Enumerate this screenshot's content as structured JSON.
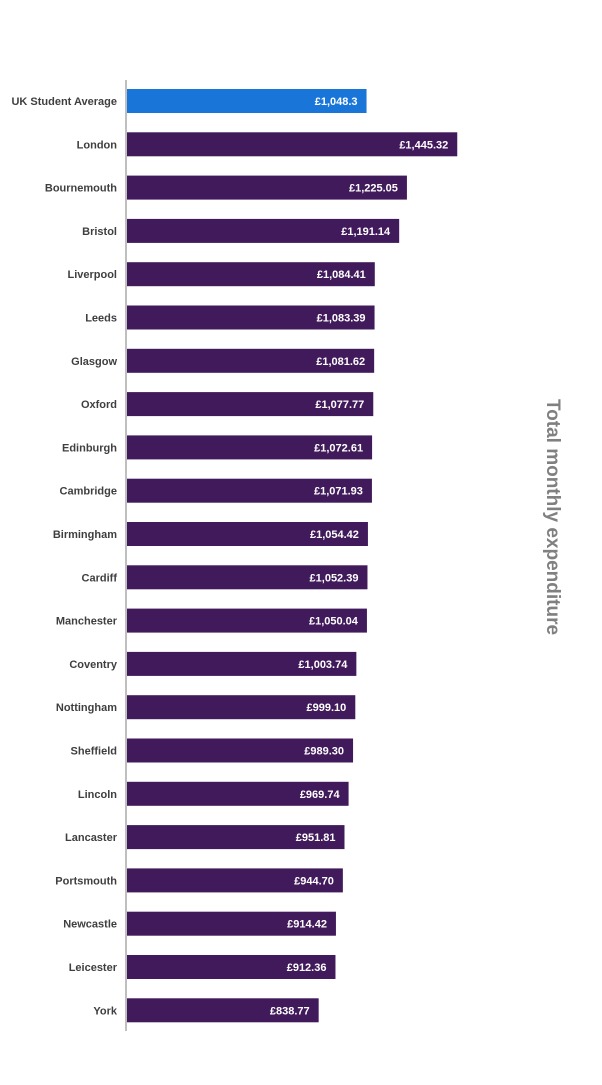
{
  "chart_data": {
    "type": "bar",
    "orientation": "horizontal",
    "title": "Total monthly expenditure",
    "xlabel": "",
    "ylabel": "",
    "xlim": [
      0,
      1500
    ],
    "grid": false,
    "categories": [
      "UK Student Average",
      "London",
      "Bournemouth",
      "Bristol",
      "Liverpool",
      "Leeds",
      "Glasgow",
      "Oxford",
      "Edinburgh",
      "Cambridge",
      "Birmingham",
      "Cardiff",
      "Manchester",
      "Coventry",
      "Nottingham",
      "Sheffield",
      "Lincoln",
      "Lancaster",
      "Portsmouth",
      "Newcastle",
      "Leicester",
      "York"
    ],
    "values": [
      1048.3,
      1445.32,
      1225.05,
      1191.14,
      1084.41,
      1083.39,
      1081.62,
      1077.77,
      1072.61,
      1071.93,
      1054.42,
      1052.39,
      1050.04,
      1003.74,
      999.1,
      989.3,
      969.74,
      951.81,
      944.7,
      914.42,
      912.36,
      838.77
    ],
    "value_labels": [
      "£1,048.3",
      "£1,445.32",
      "£1,225.05",
      "£1,191.14",
      "£1,084.41",
      "£1,083.39",
      "£1,081.62",
      "£1,077.77",
      "£1,072.61",
      "£1,071.93",
      "£1,054.42",
      "£1,052.39",
      "£1,050.04",
      "£1,003.74",
      "£999.10",
      "£989.30",
      "£969.74",
      "£951.81",
      "£944.70",
      "£914.42",
      "£912.36",
      "£838.77"
    ],
    "highlight_index": 0,
    "colors": {
      "highlight": "#1a75d9",
      "default": "#401a5a",
      "axis": "#bfbfbf"
    }
  }
}
